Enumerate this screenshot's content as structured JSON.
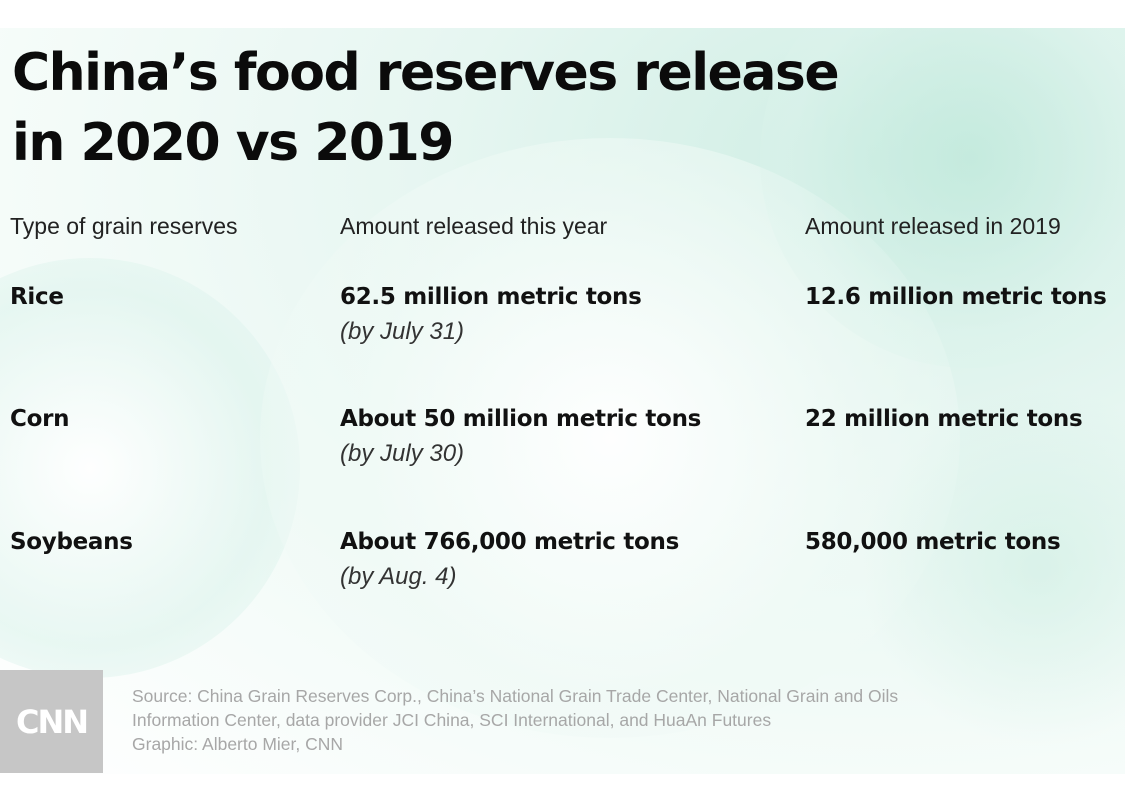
{
  "chart_data": {
    "type": "table",
    "title_lines": [
      "China’s food reserves release",
      "in 2020 vs 2019"
    ],
    "columns": [
      "Type of grain reserves",
      "Amount released this year",
      "Amount released in 2019"
    ],
    "rows": [
      {
        "grain": "Rice",
        "this_year": "62.5 million metric tons",
        "this_year_note": "(by July 31)",
        "y2019": "12.6 million metric tons"
      },
      {
        "grain": "Corn",
        "this_year": "About 50 million metric tons",
        "this_year_note": "(by July 30)",
        "y2019": "22 million metric tons"
      },
      {
        "grain": "Soybeans",
        "this_year": "About 766,000 metric tons",
        "this_year_note": "(by Aug. 4)",
        "y2019": "580,000 metric tons"
      }
    ]
  },
  "footer": {
    "source_lines": [
      "Source:  China Grain Reserves Corp., China’s National Grain Trade Center, National Grain and Oils",
      "Information Center, data provider JCI China, SCI International, and HuaAn Futures",
      "Graphic: Alberto Mier, CNN"
    ],
    "logo_text": "CNN"
  },
  "colors": {
    "background_tint": "#cfeee4",
    "logo_box": "#c6c6c6",
    "footer_text": "#a7a7a7"
  }
}
